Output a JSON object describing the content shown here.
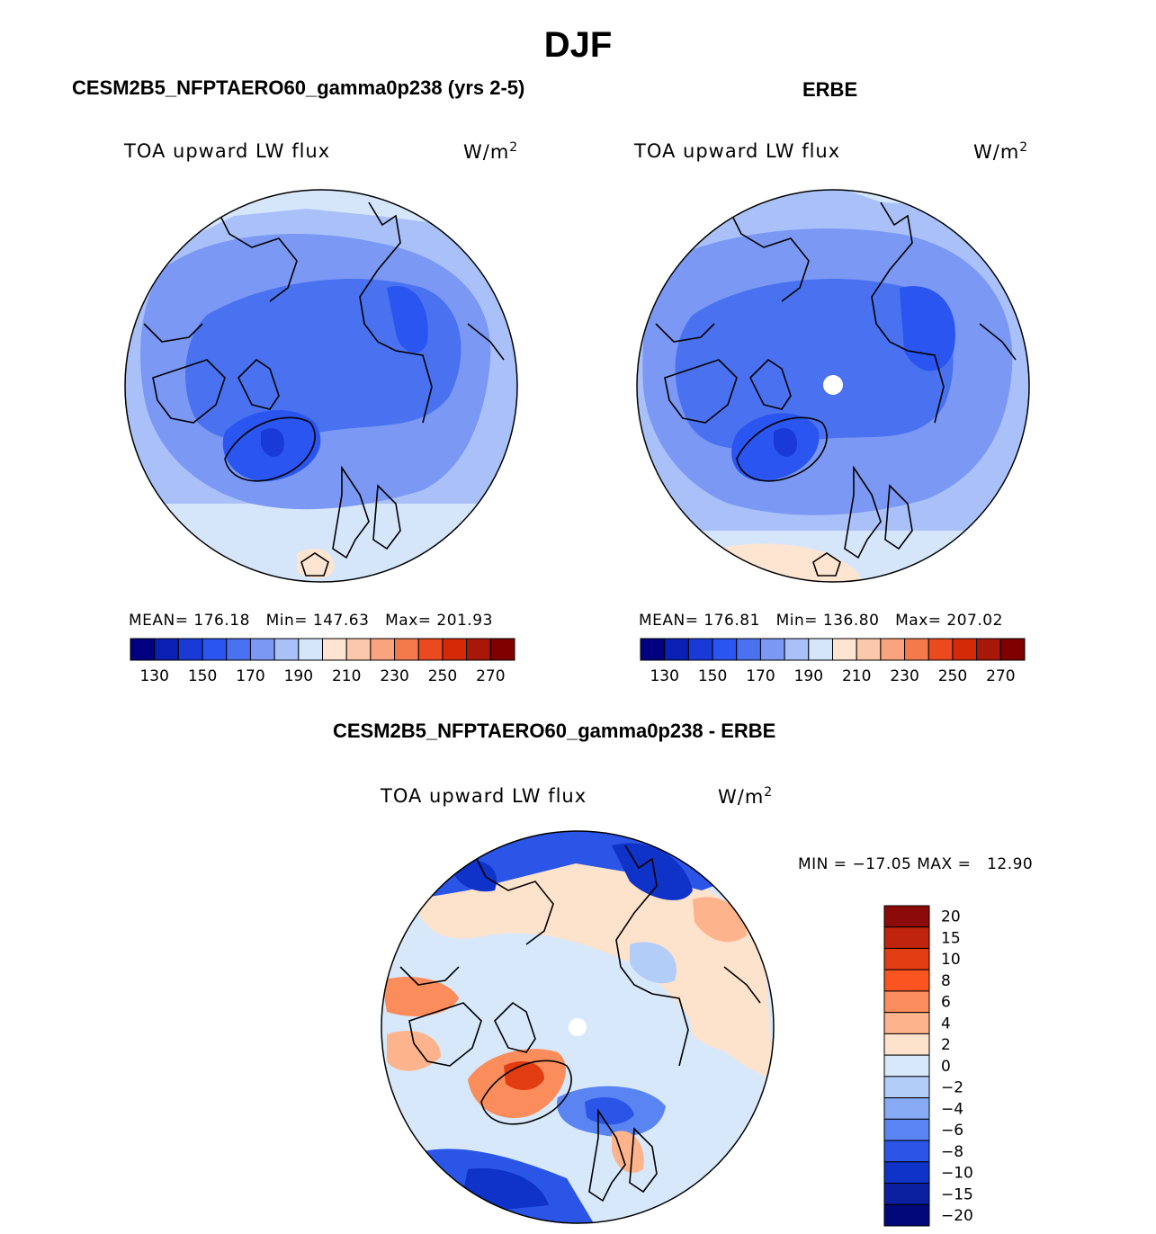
{
  "title": "DJF",
  "panels": {
    "left": {
      "title": "CESM2B5_NFPTAERO60_gamma0p238 (yrs 2-5)",
      "variable": "TOA upward LW flux",
      "units_base": "W/m",
      "units_exp": "2",
      "stats": "MEAN= 176.18   Min= 147.63   Max= 201.93"
    },
    "right": {
      "title": "ERBE",
      "variable": "TOA upward LW flux",
      "units_base": "W/m",
      "units_exp": "2",
      "stats": "MEAN= 176.81   Min= 136.80   Max= 207.02"
    },
    "diff": {
      "title": "CESM2B5_NFPTAERO60_gamma0p238 - ERBE",
      "variable": "TOA upward LW flux",
      "units_base": "W/m",
      "units_exp": "2",
      "stats": "MIN = −17.05 MAX =   12.90"
    }
  },
  "chart_data": [
    {
      "type": "heatmap",
      "projection": "north polar stereographic",
      "title": "CESM2B5_NFPTAERO60_gamma0p238 (yrs 2-5)",
      "variable": "TOA upward LW flux",
      "units": "W/m2",
      "mean": 176.18,
      "min": 147.63,
      "max": 201.93,
      "colorbar": {
        "levels": [
          130,
          140,
          150,
          160,
          170,
          180,
          190,
          200,
          210,
          220,
          230,
          240,
          250,
          260,
          270
        ],
        "tick_labels": [
          "130",
          "150",
          "170",
          "190",
          "210",
          "230",
          "250",
          "270"
        ],
        "colors": [
          "#000080",
          "#0a1fb4",
          "#1a3ad8",
          "#2a55f0",
          "#4a72f0",
          "#7a98f4",
          "#a9c0f8",
          "#d5e6fb",
          "#fde5d2",
          "#fcc8ac",
          "#f9a47e",
          "#f47a4c",
          "#ea4a1e",
          "#d42a08",
          "#a81808",
          "#800000"
        ]
      }
    },
    {
      "type": "heatmap",
      "projection": "north polar stereographic",
      "title": "ERBE",
      "variable": "TOA upward LW flux",
      "units": "W/m2",
      "mean": 176.81,
      "min": 136.8,
      "max": 207.02,
      "colorbar": {
        "levels": [
          130,
          140,
          150,
          160,
          170,
          180,
          190,
          200,
          210,
          220,
          230,
          240,
          250,
          260,
          270
        ],
        "tick_labels": [
          "130",
          "150",
          "170",
          "190",
          "210",
          "230",
          "250",
          "270"
        ],
        "colors": [
          "#000080",
          "#0a1fb4",
          "#1a3ad8",
          "#2a55f0",
          "#4a72f0",
          "#7a98f4",
          "#a9c0f8",
          "#d5e6fb",
          "#fde5d2",
          "#fcc8ac",
          "#f9a47e",
          "#f47a4c",
          "#ea4a1e",
          "#d42a08",
          "#a81808",
          "#800000"
        ]
      }
    },
    {
      "type": "heatmap",
      "projection": "north polar stereographic",
      "title": "CESM2B5_NFPTAERO60_gamma0p238 - ERBE",
      "variable": "TOA upward LW flux",
      "units": "W/m2",
      "min": -17.05,
      "max": 12.9,
      "colorbar": {
        "tick_labels": [
          "20",
          "15",
          "10",
          "8",
          "6",
          "4",
          "2",
          "0",
          "−2",
          "−4",
          "−6",
          "−8",
          "−10",
          "−15",
          "−20"
        ],
        "colors": [
          "#8c0a0a",
          "#c0240c",
          "#e23c12",
          "#fb5420",
          "#fb8c5c",
          "#fdb48c",
          "#fde2cc",
          "#d8e8fb",
          "#b2cdf8",
          "#88aaf5",
          "#5a84f1",
          "#2a55e6",
          "#0f32c8",
          "#0a20a0",
          "#00087a"
        ]
      }
    }
  ]
}
